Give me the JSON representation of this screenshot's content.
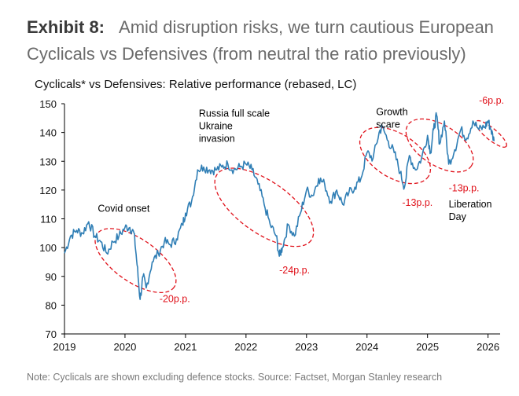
{
  "exhibit": {
    "number": "Exhibit 8:",
    "title": "Amid disruption risks, we turn cautious European Cyclicals vs Defensives (from neutral the ratio previously)"
  },
  "note": "Note: Cyclicals are shown excluding defence stocks. Source: Factset, Morgan Stanley research",
  "colors": {
    "series": "#2f7eb5",
    "annotation": "#e0121b",
    "axis": "#000000"
  },
  "chart_data": {
    "type": "line",
    "title": "Cyclicals* vs Defensives: Relative performance (rebased, LC)",
    "xlabel": "",
    "ylabel": "",
    "xlim": [
      2019,
      2026.2
    ],
    "ylim": [
      70,
      150
    ],
    "x_ticks": [
      "2019",
      "2020",
      "2021",
      "2022",
      "2023",
      "2024",
      "2025",
      "2026"
    ],
    "y_ticks": [
      70,
      80,
      90,
      100,
      110,
      120,
      130,
      140,
      150
    ],
    "grid": false,
    "x": [
      2019.0,
      2019.1,
      2019.2,
      2019.3,
      2019.4,
      2019.5,
      2019.6,
      2019.7,
      2019.8,
      2019.9,
      2020.0,
      2020.08,
      2020.15,
      2020.2,
      2020.25,
      2020.3,
      2020.35,
      2020.45,
      2020.55,
      2020.65,
      2020.75,
      2020.85,
      2020.95,
      2021.0,
      2021.1,
      2021.2,
      2021.3,
      2021.4,
      2021.5,
      2021.6,
      2021.7,
      2021.8,
      2021.9,
      2022.0,
      2022.1,
      2022.2,
      2022.3,
      2022.4,
      2022.5,
      2022.55,
      2022.6,
      2022.7,
      2022.8,
      2022.9,
      2023.0,
      2023.1,
      2023.2,
      2023.3,
      2023.4,
      2023.5,
      2023.6,
      2023.7,
      2023.8,
      2023.9,
      2024.0,
      2024.1,
      2024.2,
      2024.25,
      2024.35,
      2024.45,
      2024.55,
      2024.62,
      2024.7,
      2024.8,
      2024.9,
      2025.0,
      2025.05,
      2025.1,
      2025.15,
      2025.2,
      2025.28,
      2025.35,
      2025.45,
      2025.55,
      2025.65,
      2025.75,
      2025.85,
      2025.95,
      2026.0,
      2026.05,
      2026.1
    ],
    "series": [
      {
        "values": [
          98,
          104,
          106,
          105,
          109,
          104,
          102,
          98,
          102,
          104,
          107,
          107,
          105,
          94,
          82,
          90,
          86,
          95,
          98,
          102,
          101,
          103,
          108,
          112,
          116,
          127,
          128,
          127,
          127,
          128,
          129,
          127,
          128,
          129,
          127,
          122,
          115,
          108,
          104,
          97,
          100,
          108,
          104,
          112,
          120,
          118,
          124,
          122,
          116,
          120,
          115,
          119,
          121,
          124,
          133,
          131,
          140,
          142,
          137,
          133,
          126,
          121,
          132,
          127,
          131,
          139,
          133,
          141,
          146,
          136,
          144,
          129,
          134,
          141,
          138,
          144,
          141,
          142,
          144,
          141,
          137
        ]
      }
    ],
    "annotations": [
      {
        "text": "Covid onset",
        "color": "#000000"
      },
      {
        "text": "-20p.p.",
        "color": "#e0121b"
      },
      {
        "text": "Russia full scale Ukraine invasion",
        "color": "#000000"
      },
      {
        "text": "-24p.p.",
        "color": "#e0121b"
      },
      {
        "text": "Growth scare",
        "color": "#000000"
      },
      {
        "text": "-13p.p.",
        "color": "#e0121b"
      },
      {
        "text": "-13p.p.",
        "color": "#e0121b"
      },
      {
        "text": "Liberation Day",
        "color": "#000000"
      },
      {
        "text": "-6p.p.",
        "color": "#e0121b"
      }
    ],
    "highlight_periods": [
      {
        "x": [
          2019.8,
          2020.55
        ],
        "y": [
          80,
          111
        ]
      },
      {
        "x": [
          2021.85,
          2022.75
        ],
        "y": [
          95,
          133
        ]
      },
      {
        "x": [
          2024.08,
          2024.85
        ],
        "y": [
          119,
          145
        ]
      },
      {
        "x": [
          2024.85,
          2025.55
        ],
        "y": [
          123,
          148
        ]
      },
      {
        "x": [
          2025.95,
          2026.15
        ],
        "y": [
          133,
          146
        ]
      }
    ]
  }
}
